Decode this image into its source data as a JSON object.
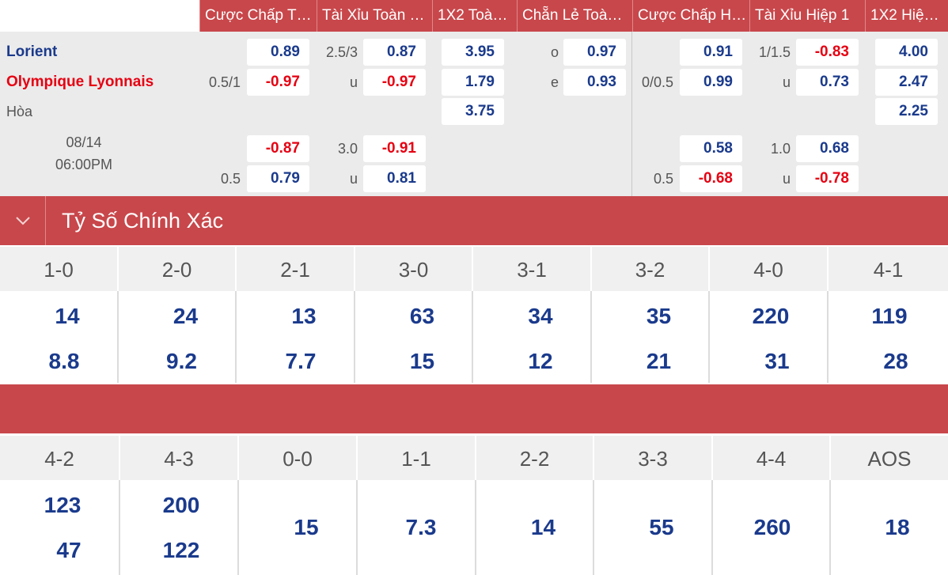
{
  "columns": [
    "Cược Chấp T…",
    "Tài Xỉu Toàn …",
    "1X2 Toà…",
    "Chẵn Lẻ Toà…",
    "Cược Chấp H…",
    "Tài Xỉu Hiệp 1",
    "1X2 Hiệ…"
  ],
  "match": {
    "home": "Lorient",
    "away": "Olympique Lyonnais",
    "draw": "Hòa",
    "date": "08/14",
    "time": "06:00PM"
  },
  "odds": {
    "r1": {
      "hcp_val": "0.89",
      "ou_line": "2.5/3",
      "ou_val": "0.87",
      "x12": "3.95",
      "oe_label": "o",
      "oe_val": "0.97",
      "h1hcp_val": "0.91",
      "h1ou_line": "1/1.5",
      "h1ou_val": "-0.83",
      "h1x12": "4.00"
    },
    "r2": {
      "hcp_line": "0.5/1",
      "hcp_val": "-0.97",
      "ou_label": "u",
      "ou_val": "-0.97",
      "x12": "1.79",
      "oe_label": "e",
      "oe_val": "0.93",
      "h1hcp_line": "0/0.5",
      "h1hcp_val": "0.99",
      "h1ou_label": "u",
      "h1ou_val": "0.73",
      "h1x12": "2.47"
    },
    "r3": {
      "x12": "3.75",
      "h1x12": "2.25"
    },
    "r4": {
      "hcp_val": "-0.87",
      "ou_line": "3.0",
      "ou_val": "-0.91",
      "h1hcp_val": "0.58",
      "h1ou_line": "1.0",
      "h1ou_val": "0.68"
    },
    "r5": {
      "hcp_line": "0.5",
      "hcp_val": "0.79",
      "ou_label": "u",
      "ou_val": "0.81",
      "h1hcp_line": "0.5",
      "h1hcp_val": "-0.68",
      "h1ou_label": "u",
      "h1ou_val": "-0.78"
    }
  },
  "section": {
    "title": "Tỷ Số Chính Xác",
    "icon": "chevron-down-icon"
  },
  "scores1": {
    "labels": [
      "1-0",
      "2-0",
      "2-1",
      "3-0",
      "3-1",
      "3-2",
      "4-0",
      "4-1"
    ],
    "top": [
      "14",
      "24",
      "13",
      "63",
      "34",
      "35",
      "220",
      "119"
    ],
    "bottom": [
      "8.8",
      "9.2",
      "7.7",
      "15",
      "12",
      "21",
      "31",
      "28"
    ]
  },
  "scores2": {
    "labels": [
      "4-2",
      "4-3",
      "0-0",
      "1-1",
      "2-2",
      "3-3",
      "4-4",
      "AOS"
    ],
    "top": [
      "123",
      "200"
    ],
    "bottom": [
      "47",
      "122"
    ],
    "single": [
      "15",
      "7.3",
      "14",
      "55",
      "260",
      "18"
    ]
  },
  "colors": {
    "header": "#c8474b",
    "blue": "#1a3a8c",
    "red": "#e60012"
  }
}
